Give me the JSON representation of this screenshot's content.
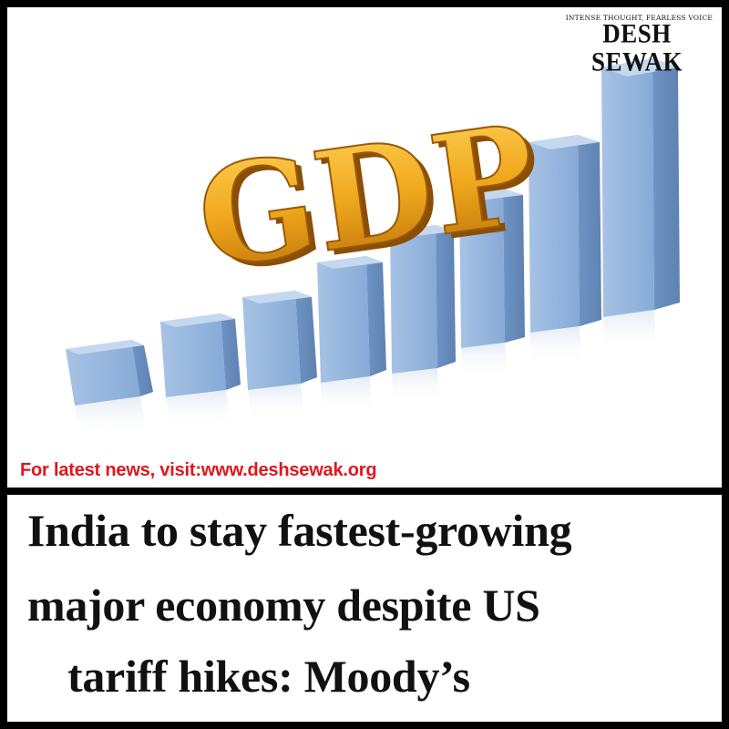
{
  "masthead": {
    "tagline": "INTENSE THOUGHT, FEARLESS VOICE",
    "brand": "DESH SEWAK"
  },
  "illustration": {
    "word": "GDP",
    "subject": "rising-bar-graph",
    "bar_color": "#8fb3dc",
    "letter_color": "#f0a81c"
  },
  "promo": {
    "text": "For latest news, visit:www.deshsewak.org",
    "color": "#e0161c"
  },
  "headline": {
    "line1": "India to stay fastest-growing",
    "line2": "major economy despite US",
    "line3": "tariff hikes: Moody’s"
  }
}
